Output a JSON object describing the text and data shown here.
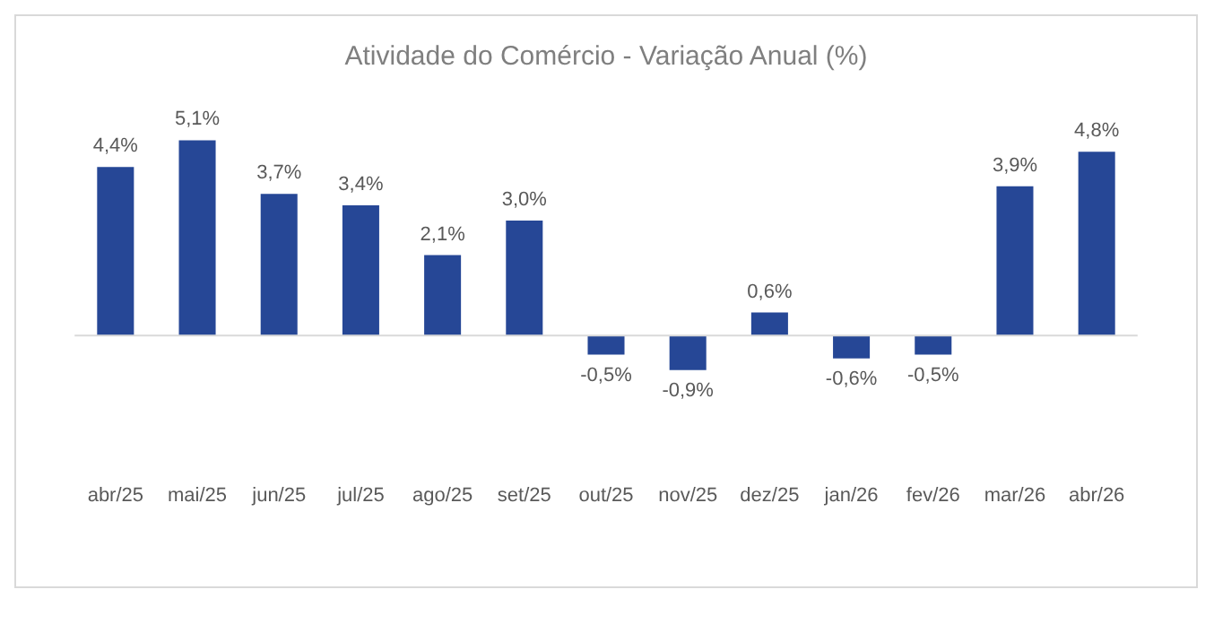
{
  "chart_data": {
    "type": "bar",
    "title": "Atividade do Comércio - Variação Anual (%)",
    "categories": [
      "abr/25",
      "mai/25",
      "jun/25",
      "jul/25",
      "ago/25",
      "set/25",
      "out/25",
      "nov/25",
      "dez/25",
      "jan/26",
      "fev/26",
      "mar/26",
      "abr/26"
    ],
    "values": [
      4.4,
      5.1,
      3.7,
      3.4,
      2.1,
      3.0,
      -0.5,
      -0.9,
      0.6,
      -0.6,
      -0.5,
      3.9,
      4.8
    ],
    "value_labels": [
      "4,4%",
      "5,1%",
      "3,7%",
      "3,4%",
      "2,1%",
      "3,0%",
      "-0,5%",
      "-0,9%",
      "0,6%",
      "-0,6%",
      "-0,5%",
      "3,9%",
      "4,8%"
    ],
    "color": "#264796",
    "legend": false,
    "grid": false
  }
}
